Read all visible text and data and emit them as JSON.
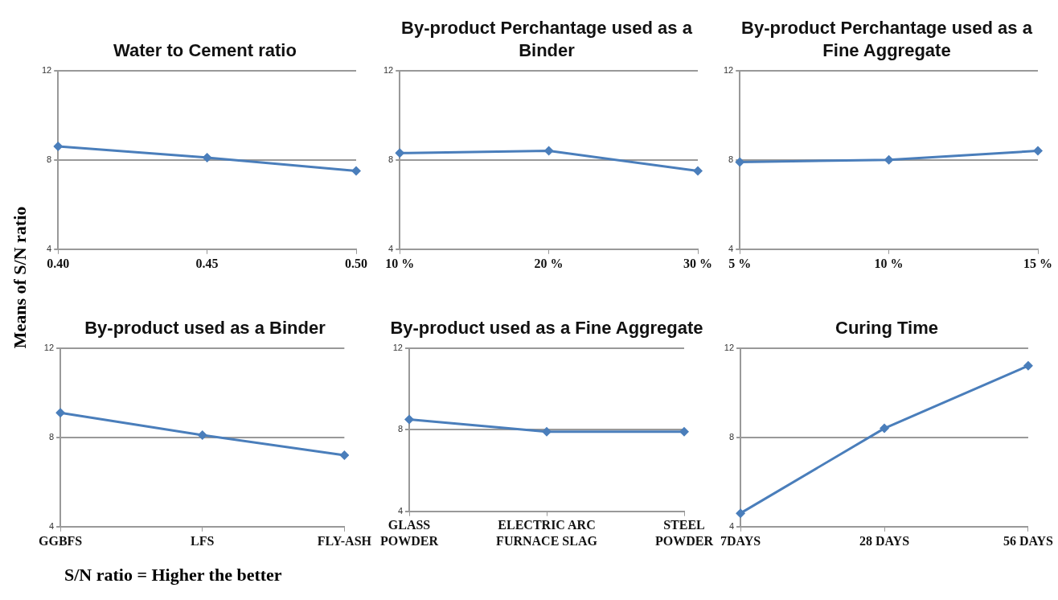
{
  "chart_data": [
    {
      "type": "line",
      "title": "Water to Cement ratio",
      "ylabel": "Means of S/N ratio",
      "categories": [
        "0.40",
        "0.45",
        "0.50"
      ],
      "values": [
        8.6,
        8.1,
        7.5
      ],
      "color": "#4a7ebb",
      "ylim": [
        4,
        12
      ],
      "yticks": [
        4,
        8,
        12
      ],
      "grid": "y",
      "marker": "diamond"
    },
    {
      "type": "line",
      "title": "By-product Perchantage used as a Binder",
      "categories": [
        "10 %",
        "20 %",
        "30 %"
      ],
      "values": [
        8.3,
        8.4,
        7.5
      ],
      "color": "#4a7ebb",
      "ylim": [
        4,
        12
      ],
      "yticks": [
        4,
        8,
        12
      ],
      "grid": "y",
      "marker": "diamond"
    },
    {
      "type": "line",
      "title": "By-product Perchantage used as a Fine Aggregate",
      "categories": [
        "5 %",
        "10 %",
        "15 %"
      ],
      "values": [
        7.9,
        8.0,
        8.4
      ],
      "color": "#4a7ebb",
      "ylim": [
        4,
        12
      ],
      "yticks": [
        4,
        8,
        12
      ],
      "grid": "y",
      "marker": "diamond"
    },
    {
      "type": "line",
      "title": "By-product used as a Binder",
      "annotations": [
        "S/N ratio = Higher the better"
      ],
      "categories": [
        "GGBFS",
        "LFS",
        "FLY-ASH"
      ],
      "values": [
        9.1,
        8.1,
        7.2
      ],
      "color": "#4a7ebb",
      "ylim": [
        4,
        12
      ],
      "yticks": [
        4,
        8,
        12
      ],
      "grid": "y",
      "marker": "diamond"
    },
    {
      "type": "line",
      "title": "By-product used as a Fine Aggregate",
      "categories": [
        "GLASS POWDER",
        "ELECTRIC ARC FURNACE SLAG",
        "STEEL POWDER"
      ],
      "values": [
        8.5,
        7.9,
        7.9
      ],
      "color": "#4a7ebb",
      "ylim": [
        4,
        12
      ],
      "yticks": [
        4,
        8,
        12
      ],
      "grid": "y",
      "marker": "diamond"
    },
    {
      "type": "line",
      "title": "Curing Time",
      "categories": [
        "7DAYS",
        "28 DAYS",
        "56 DAYS"
      ],
      "values": [
        4.6,
        8.4,
        11.2
      ],
      "color": "#4a7ebb",
      "ylim": [
        4,
        12
      ],
      "yticks": [
        4,
        8,
        12
      ],
      "grid": "y",
      "marker": "diamond"
    }
  ]
}
